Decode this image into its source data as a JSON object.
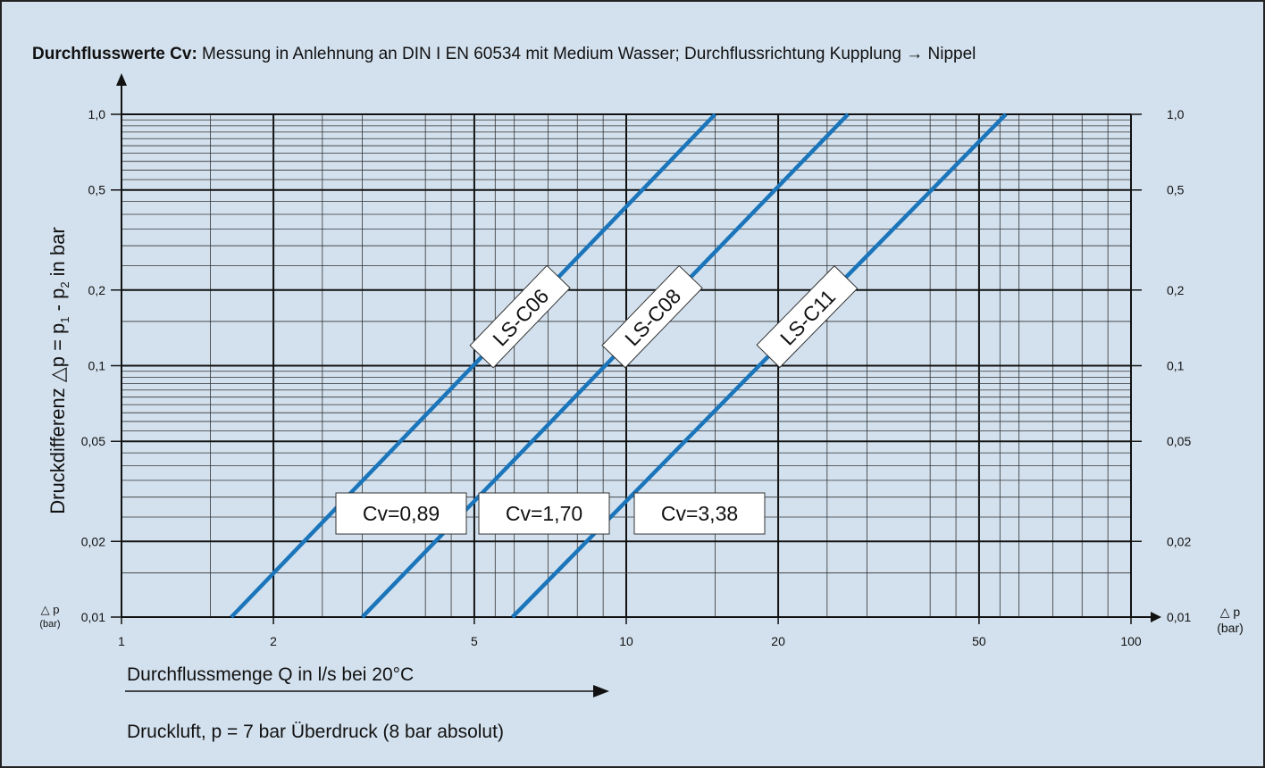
{
  "title": {
    "bold": "Durchflusswerte Cv:",
    "rest": " Messung in Anlehnung an DIN I EN 60534 mit Medium Wasser; Durchflussrichtung Kupplung → Nippel"
  },
  "colors": {
    "background": "#d3e1ee",
    "series_line": "#1b75bb",
    "grid_minor": "#333333",
    "grid_major": "#111111"
  },
  "labels": {
    "xlabel": "Durchflussmenge Q in l/s bei 20°C",
    "subnote": "Druckluft, p = 7 bar Überdruck (8 bar absolut)",
    "ylabel_main": "Druckdifferenz △p = p",
    "ylabel_sub1": "1",
    "ylabel_mid": " - p",
    "ylabel_sub2": "2",
    "ylabel_end": " in bar",
    "dp_symbol": "△ p",
    "dp_unit": "(bar)"
  },
  "chart_data": {
    "type": "line",
    "title": "Durchflusswerte Cv: Messung in Anlehnung an DIN I EN 60534 mit Medium Wasser; Durchflussrichtung Kupplung → Nippel",
    "xlabel": "Durchflussmenge Q in l/s bei 20°C",
    "ylabel": "Druckdifferenz △p = p1 - p2 in bar",
    "x_scale": "log",
    "y_scale": "log",
    "xlim": [
      1,
      100
    ],
    "ylim": [
      0.01,
      1.0
    ],
    "x_ticks": [
      1,
      2,
      5,
      10,
      20,
      50,
      100
    ],
    "x_tick_labels": [
      "1",
      "2",
      "5",
      "10",
      "20",
      "50",
      "100"
    ],
    "y_ticks": [
      0.01,
      0.02,
      0.05,
      0.1,
      0.2,
      0.5,
      1.0
    ],
    "y_tick_labels": [
      "0,01",
      "0,02",
      "0,05",
      "0,1",
      "0,2",
      "0,5",
      "1,0"
    ],
    "grid": true,
    "series": [
      {
        "name": "LS-C06",
        "cv_label": "Cv=0,89",
        "x": [
          1.65,
          15.0
        ],
        "y": [
          0.01,
          1.0
        ]
      },
      {
        "name": "LS-C08",
        "cv_label": "Cv=1,70",
        "x": [
          3.0,
          27.5
        ],
        "y": [
          0.01,
          1.0
        ]
      },
      {
        "name": "LS-C11",
        "cv_label": "Cv=3,38",
        "x": [
          5.95,
          56.5
        ],
        "y": [
          0.01,
          1.0
        ]
      }
    ]
  }
}
